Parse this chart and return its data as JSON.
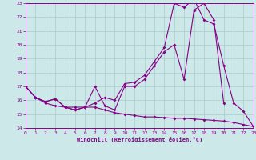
{
  "bg_color": "#cce8e8",
  "line_color": "#880088",
  "grid_color": "#aacccc",
  "xlabel": "Windchill (Refroidissement éolien,°C)",
  "xlim": [
    0,
    23
  ],
  "ylim": [
    14,
    23
  ],
  "yticks": [
    14,
    15,
    16,
    17,
    18,
    19,
    20,
    21,
    22,
    23
  ],
  "xticks": [
    0,
    1,
    2,
    3,
    4,
    5,
    6,
    7,
    8,
    9,
    10,
    11,
    12,
    13,
    14,
    15,
    16,
    17,
    18,
    19,
    20,
    21,
    22,
    23
  ],
  "line1_x": [
    0,
    1,
    2,
    3,
    4,
    5,
    6,
    7,
    8,
    9,
    10,
    11,
    12,
    13,
    14,
    15,
    16,
    17,
    18,
    19,
    20,
    21,
    22,
    23
  ],
  "line1_y": [
    17.0,
    16.2,
    15.8,
    15.6,
    15.5,
    15.5,
    15.5,
    15.5,
    15.3,
    15.1,
    15.0,
    14.9,
    14.8,
    14.8,
    14.75,
    14.7,
    14.7,
    14.65,
    14.6,
    14.55,
    14.5,
    14.4,
    14.25,
    14.1
  ],
  "line2_x": [
    0,
    1,
    2,
    3,
    4,
    5,
    6,
    7,
    8,
    9,
    10,
    11,
    12,
    13,
    14,
    15,
    16,
    17,
    18,
    19,
    20
  ],
  "line2_y": [
    17.0,
    16.2,
    15.9,
    16.1,
    15.5,
    15.3,
    15.5,
    17.0,
    15.6,
    15.3,
    17.0,
    17.0,
    17.5,
    18.5,
    19.5,
    20.0,
    17.5,
    22.5,
    23.0,
    21.8,
    15.8
  ],
  "line3_x": [
    0,
    1,
    2,
    3,
    4,
    5,
    6,
    7,
    8,
    9,
    10,
    11,
    12,
    13,
    14,
    15,
    16,
    17,
    18,
    19,
    20,
    21,
    22,
    23
  ],
  "line3_y": [
    17.0,
    16.2,
    15.9,
    16.1,
    15.5,
    15.3,
    15.5,
    15.8,
    16.2,
    16.0,
    17.2,
    17.3,
    17.8,
    18.8,
    19.8,
    23.0,
    22.7,
    23.3,
    21.8,
    21.5,
    18.5,
    15.8,
    15.2,
    14.1
  ]
}
